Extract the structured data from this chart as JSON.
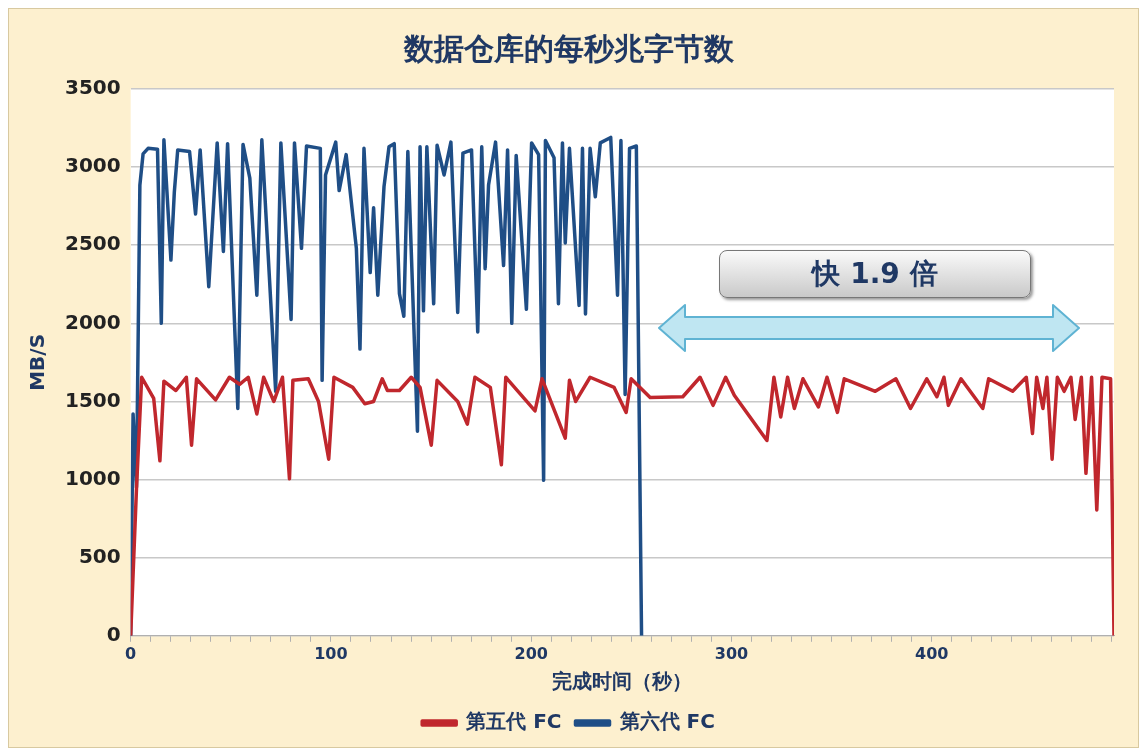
{
  "chart_data": {
    "type": "line",
    "title": "数据仓库的每秒兆字节数",
    "xlabel": "完成时间（秒）",
    "ylabel": "MB/S",
    "annotations": [
      "快 1.9 倍"
    ],
    "xlim": [
      0,
      491
    ],
    "ylim": [
      0,
      3500
    ],
    "xticks": [
      0,
      {
        "value": 10,
        "label": null
      },
      {
        "value": 20,
        "label": null
      },
      {
        "value": 30,
        "label": null
      },
      {
        "value": 40,
        "label": null
      },
      {
        "value": 50,
        "label": null
      },
      {
        "value": 60,
        "label": null
      },
      {
        "value": 70,
        "label": null
      },
      {
        "value": 80,
        "label": null
      },
      {
        "value": 90,
        "label": null
      },
      100,
      {
        "value": 110,
        "label": null
      },
      {
        "value": 120,
        "label": null
      },
      {
        "value": 130,
        "label": null
      },
      {
        "value": 140,
        "label": null
      },
      {
        "value": 150,
        "label": null
      },
      {
        "value": 160,
        "label": null
      },
      {
        "value": 170,
        "label": null
      },
      {
        "value": 180,
        "label": null
      },
      {
        "value": 190,
        "label": null
      },
      200,
      {
        "value": 210,
        "label": null
      },
      {
        "value": 220,
        "label": null
      },
      {
        "value": 230,
        "label": null
      },
      {
        "value": 240,
        "label": null
      },
      {
        "value": 250,
        "label": null
      },
      {
        "value": 260,
        "label": null
      },
      {
        "value": 270,
        "label": null
      },
      {
        "value": 280,
        "label": null
      },
      {
        "value": 290,
        "label": null
      },
      300,
      {
        "value": 310,
        "label": null
      },
      {
        "value": 320,
        "label": null
      },
      {
        "value": 330,
        "label": null
      },
      {
        "value": 340,
        "label": null
      },
      {
        "value": 350,
        "label": null
      },
      {
        "value": 360,
        "label": null
      },
      {
        "value": 370,
        "label": null
      },
      {
        "value": 380,
        "label": null
      },
      {
        "value": 390,
        "label": null
      },
      400,
      {
        "value": 410,
        "label": null
      },
      {
        "value": 420,
        "label": null
      },
      {
        "value": 430,
        "label": null
      },
      {
        "value": 440,
        "label": null
      },
      {
        "value": 450,
        "label": null
      },
      {
        "value": 460,
        "label": null
      },
      {
        "value": 470,
        "label": null
      },
      {
        "value": 480,
        "label": null
      },
      {
        "value": 490,
        "label": null
      }
    ],
    "yticks": [
      0,
      500,
      1000,
      1500,
      2000,
      2500,
      3000,
      3500
    ],
    "grid": "y",
    "legend": "bottom",
    "marker": "none",
    "line_style": "solid",
    "series": [
      {
        "name": "第五代 FC",
        "color": "#c0272d",
        "x": [
          0,
          2.9,
          5.5,
          11.5,
          14.6,
          16.6,
          22.6,
          27.8,
          30.4,
          32.9,
          42.4,
          49.3,
          54.4,
          58.7,
          63,
          66.4,
          71.5,
          75.8,
          79.3,
          81,
          88.7,
          93.8,
          98.9,
          101.5,
          110.9,
          116.9,
          121.3,
          125.6,
          128.2,
          134.2,
          140.1,
          144.5,
          150.1,
          153,
          163.3,
          168.1,
          171.9,
          179.6,
          185.1,
          187.3,
          201.9,
          205.4,
          217,
          219.1,
          222.2,
          229.4,
          241.4,
          247.4,
          249.9,
          259.4,
          275.7,
          284.3,
          290.8,
          297.1,
          301.4,
          317.7,
          321.2,
          324.6,
          328,
          331.4,
          335.7,
          343.4,
          347.7,
          352.9,
          356.3,
          371.8,
          382.1,
          389.4,
          397.5,
          402.6,
          406.1,
          408.3,
          414.6,
          425.5,
          428.4,
          440.4,
          447.2,
          450.3,
          452.4,
          455.5,
          457.5,
          460.1,
          462.7,
          466.1,
          469.5,
          471.6,
          474.7,
          477,
          479.8,
          482.4,
          485,
          489.3,
          491
        ],
        "values": [
          0,
          940,
          1655,
          1520,
          1120,
          1630,
          1570,
          1655,
          1220,
          1645,
          1510,
          1655,
          1610,
          1655,
          1420,
          1655,
          1500,
          1655,
          1005,
          1635,
          1645,
          1500,
          1130,
          1655,
          1590,
          1485,
          1500,
          1645,
          1570,
          1570,
          1655,
          1590,
          1220,
          1635,
          1500,
          1355,
          1655,
          1590,
          1095,
          1655,
          1440,
          1645,
          1265,
          1635,
          1500,
          1655,
          1590,
          1430,
          1645,
          1525,
          1530,
          1655,
          1475,
          1655,
          1540,
          1250,
          1655,
          1400,
          1655,
          1455,
          1645,
          1465,
          1655,
          1430,
          1645,
          1565,
          1645,
          1455,
          1645,
          1530,
          1655,
          1475,
          1645,
          1455,
          1645,
          1565,
          1655,
          1295,
          1655,
          1455,
          1655,
          1130,
          1655,
          1565,
          1655,
          1385,
          1655,
          1040,
          1655,
          805,
          1655,
          1645,
          0
        ]
      },
      {
        "name": "第六代 FC",
        "color": "#1f4e86",
        "x": [
          0,
          1.2,
          2.9,
          4.6,
          6.2,
          8.7,
          13.4,
          15.3,
          16.6,
          20.1,
          21.8,
          23.5,
          29.4,
          32.4,
          34.7,
          39,
          43.2,
          46.3,
          48.4,
          53.5,
          56.1,
          59.5,
          63,
          65.5,
          72.4,
          75,
          80.1,
          81.8,
          85.3,
          87.8,
          94.7,
          95.6,
          97.3,
          102.4,
          104.1,
          107.6,
          112.7,
          114.5,
          116.5,
          119.6,
          121.3,
          123.4,
          126.5,
          129,
          131.6,
          134.2,
          136.4,
          138.4,
          143.2,
          144.5,
          146.2,
          147.9,
          151.3,
          153,
          156.5,
          159.9,
          163.3,
          165.9,
          170.2,
          173.3,
          175.3,
          177,
          178.7,
          182.2,
          186.2,
          188.2,
          190.3,
          192.5,
          197.6,
          200.2,
          203.7,
          206.2,
          207.1,
          211.4,
          213.6,
          215.6,
          217,
          219.1,
          223.9,
          225.6,
          227.1,
          229.4,
          232,
          234.5,
          239.7,
          243.1,
          244.8,
          246.9,
          249.1,
          252.5,
          255.1
        ],
        "values": [
          0,
          1420,
          950,
          2885,
          3085,
          3120,
          3115,
          2000,
          3175,
          2405,
          2840,
          3110,
          3100,
          2700,
          3110,
          2235,
          3155,
          2460,
          3150,
          1455,
          3145,
          2930,
          2180,
          3175,
          1565,
          3155,
          2025,
          3155,
          2480,
          3135,
          3120,
          1635,
          2950,
          3160,
          2850,
          3080,
          2480,
          1835,
          3120,
          2325,
          2740,
          2180,
          2875,
          3130,
          3150,
          2190,
          2045,
          3100,
          1310,
          3130,
          2080,
          3130,
          2125,
          3140,
          2950,
          3160,
          2070,
          3090,
          3110,
          1945,
          3130,
          2350,
          2885,
          3160,
          2370,
          3110,
          2000,
          3075,
          2090,
          3155,
          3080,
          995,
          3170,
          3060,
          2125,
          3155,
          2515,
          3120,
          2115,
          3120,
          2060,
          3120,
          2810,
          3155,
          3190,
          2180,
          3170,
          1545,
          3120,
          3135,
          0
        ]
      }
    ]
  }
}
